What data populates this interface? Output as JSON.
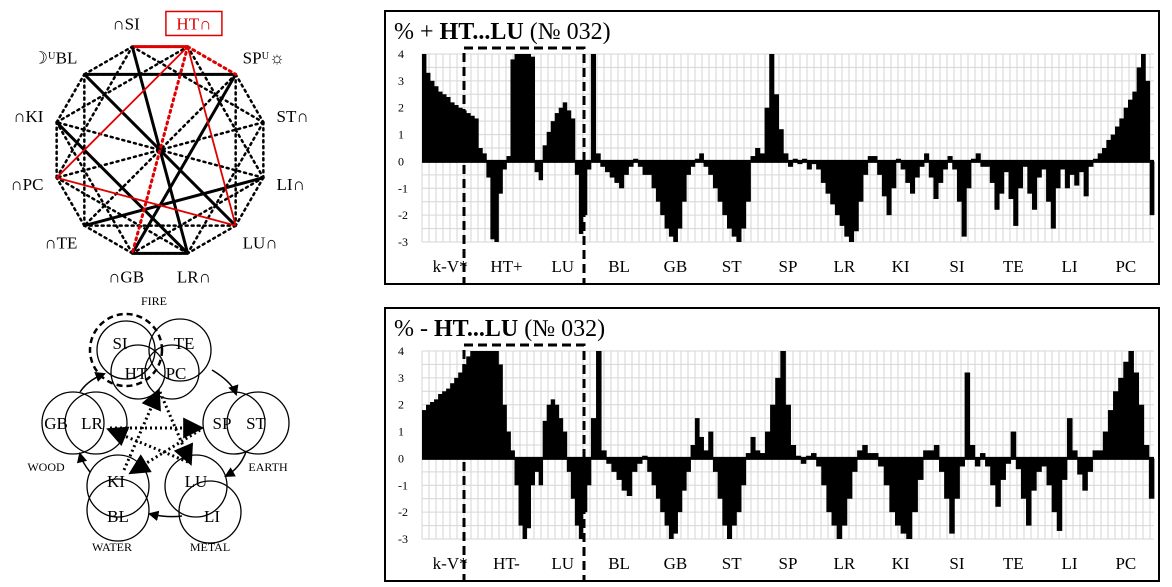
{
  "star_diagram": {
    "nodes": [
      {
        "id": "SI",
        "prefix": "∩",
        "label": "SI",
        "color": "#000"
      },
      {
        "id": "HT",
        "prefix": "",
        "label": "HT∩",
        "color": "#e00000",
        "boxed": true
      },
      {
        "id": "SP",
        "prefix": "",
        "label": "SPᵁ☼",
        "color": "#000"
      },
      {
        "id": "ST",
        "prefix": "",
        "label": "ST∩",
        "color": "#000"
      },
      {
        "id": "LI",
        "prefix": "",
        "label": "LI∩",
        "color": "#000"
      },
      {
        "id": "LU",
        "prefix": "",
        "label": "LU∩",
        "color": "#000"
      },
      {
        "id": "LR",
        "prefix": "",
        "label": "LR∩",
        "color": "#000"
      },
      {
        "id": "GB",
        "prefix": "∩",
        "label": "GB",
        "color": "#000"
      },
      {
        "id": "TE",
        "prefix": "∩",
        "label": "TE",
        "color": "#000"
      },
      {
        "id": "PC",
        "prefix": "∩",
        "label": "PC",
        "color": "#000"
      },
      {
        "id": "KI",
        "prefix": "∩",
        "label": "KI",
        "color": "#000"
      },
      {
        "id": "BL",
        "prefix": "☽ᵁ",
        "label": "BL",
        "color": "#000"
      }
    ],
    "red_color": "#e00000"
  },
  "elements_diagram": {
    "fire": "FIRE",
    "earth": "EARTH",
    "metal": "METAL",
    "water": "WATER",
    "wood": "WOOD",
    "organs": {
      "SI": "SI",
      "TE": "TE",
      "HT": "HT",
      "PC": "PC",
      "SP": "SP",
      "ST": "ST",
      "LU": "LU",
      "LI": "LI",
      "KI": "KI",
      "BL": "BL",
      "GB": "GB",
      "LR": "LR"
    }
  },
  "charts": {
    "top": {
      "title_prefix": "%  + ",
      "title_bold": "HT...LU",
      "title_suffix": " (№ 032)",
      "xlabels": [
        "k-V*",
        "HT+",
        "LU",
        "BL",
        "GB",
        "ST",
        "SP",
        "LR",
        "KI",
        "SI",
        "TE",
        "LI",
        "PC"
      ]
    },
    "bottom": {
      "title_prefix": "%  - ",
      "title_bold": "HT...LU",
      "title_suffix": " (№ 032)",
      "xlabels": [
        "k-V*",
        "HT-",
        "LU",
        "BL",
        "GB",
        "ST",
        "SP",
        "LR",
        "KI",
        "SI",
        "TE",
        "LI",
        "PC"
      ]
    }
  },
  "chart_data": [
    {
      "type": "bar",
      "title": "% + HT...LU (№ 032)",
      "ylim": [
        -3,
        4
      ],
      "yticks": [
        4,
        3,
        2,
        1,
        0,
        -1,
        -2,
        -3
      ],
      "grid": true,
      "categories": [
        "k-V*",
        "HT+",
        "LU",
        "BL",
        "GB",
        "ST",
        "SP",
        "LR",
        "KI",
        "SI",
        "TE",
        "LI",
        "PC"
      ],
      "segments": [
        [
          4,
          3.3,
          3,
          2.8,
          2.6,
          2.5,
          2.4,
          2.2,
          2.1,
          2,
          1.9,
          1.8,
          1.7,
          1.6
        ],
        [
          0.5,
          0.3,
          -0.6,
          -2.9,
          -3,
          -1.2,
          -0.3,
          0.2,
          3.8,
          4,
          4,
          4,
          4,
          3.9
        ],
        [
          -0.4,
          -0.7,
          0.6,
          1.1,
          1.5,
          1.8,
          2,
          2.2,
          1.9,
          1.6,
          -0.5,
          -2.7,
          -2,
          -0.3
        ],
        [
          4,
          0.3,
          -0.2,
          -0.4,
          -0.6,
          -0.8,
          -1,
          -0.5,
          -0.2,
          0.1,
          -0.2,
          -0.5
        ],
        [
          -0.5,
          -1,
          -1.5,
          -2,
          -2.5,
          -2.8,
          -3,
          -2.5,
          -1.5,
          -0.5,
          -0.2,
          0.1,
          0.3
        ],
        [
          -0.2,
          -0.5,
          -1,
          -1.5,
          -2,
          -2.5,
          -2.8,
          -3,
          -2.5,
          -1.5,
          0.2,
          0.5
        ],
        [
          0.3,
          2,
          4,
          2.5,
          1.2,
          0.3,
          -0.2,
          0.1,
          -0.1,
          0.1,
          -0.3,
          -0.1
        ],
        [
          -0.3,
          -0.8,
          -1.2,
          -1.6,
          -2,
          -2.4,
          -2.8,
          -3,
          -2.6,
          -1.5,
          -0.5,
          0.2
        ],
        [
          0.2,
          -0.5,
          -1.3,
          -2,
          -1,
          0.1,
          -0.3,
          -0.8,
          -1.2,
          -0.6,
          -0.2,
          0.3
        ],
        [
          -0.6,
          -1.4,
          -0.8,
          -0.3,
          0.2,
          -0.3,
          -1.5,
          -2.8,
          -1,
          0.1,
          0.3,
          -0.2
        ],
        [
          -0.2,
          -0.8,
          -1.8,
          -1.2,
          -0.4,
          -1.4,
          -2.4,
          -1,
          -0.2,
          -1.2,
          -1.8,
          -0.6
        ],
        [
          -0.3,
          -1.5,
          -2.5,
          -1,
          -0.3,
          -1,
          -0.5,
          -0.9,
          -0.4,
          -1.3,
          -0.2,
          0.1
        ],
        [
          0.3,
          0.5,
          0.8,
          1,
          1.3,
          1.6,
          2,
          2.3,
          2.6,
          3.5,
          4,
          3,
          -2
        ]
      ]
    },
    {
      "type": "bar",
      "title": "% - HT...LU (№ 032)",
      "ylim": [
        -3,
        4
      ],
      "yticks": [
        4,
        3,
        2,
        1,
        0,
        -1,
        -2,
        -3
      ],
      "grid": true,
      "categories": [
        "k-V*",
        "HT-",
        "LU",
        "BL",
        "GB",
        "ST",
        "SP",
        "LR",
        "KI",
        "SI",
        "TE",
        "LI",
        "PC"
      ],
      "segments": [
        [
          1.8,
          2,
          2.1,
          2.2,
          2.4,
          2.5,
          2.6,
          2.8,
          3,
          3.2,
          3.5,
          3.8,
          4,
          4
        ],
        [
          4,
          4,
          4,
          4,
          4,
          3.5,
          2,
          1,
          0.3,
          -1,
          -2.5,
          -3,
          -2.6,
          -1
        ],
        [
          -0.5,
          -1,
          1.4,
          2,
          2.2,
          2,
          1.5,
          1,
          -0.5,
          -1.5,
          -2.5,
          -3,
          -2,
          -1
        ],
        [
          1.5,
          4,
          0.3,
          -0.2,
          -0.5,
          -0.8,
          -1.2,
          -1.4,
          -0.5,
          -0.2,
          0.1
        ],
        [
          -0.5,
          -1,
          -1.5,
          -2,
          -2.5,
          -3,
          -2.8,
          -2,
          -1.2,
          -0.5,
          0.5,
          1.5,
          0.8
        ],
        [
          0.3,
          1,
          -0.5,
          -1.5,
          -2.5,
          -3,
          -2.5,
          -2,
          -1,
          0.2,
          0.8,
          0.3
        ],
        [
          0.2,
          1,
          2,
          3,
          4,
          2,
          0.5,
          0.1,
          -0.2,
          0.1,
          0.2
        ],
        [
          -0.3,
          -1,
          -2,
          -2.5,
          -3,
          -2.5,
          -1.5,
          -0.5,
          0.3,
          0.5,
          0.2
        ],
        [
          0.2,
          -0.3,
          -1,
          -2,
          -2.5,
          -2.8,
          -3,
          -2,
          -0.8,
          0.3
        ],
        [
          0.3,
          0.5,
          -0.5,
          -1.5,
          -2.8,
          -1.5,
          -0.3,
          3.2,
          0.5,
          -0.3,
          0.2
        ],
        [
          -0.3,
          -1,
          -1.8,
          -0.8,
          -0.2,
          1,
          -0.4,
          -1.5,
          -2.5,
          -1.2,
          -0.5
        ],
        [
          -0.3,
          -1,
          -2,
          -2.7,
          -0.8,
          1.5,
          0.3,
          -0.6,
          -1.2,
          -0.5,
          0.3
        ],
        [
          0.3,
          1,
          1.8,
          2.5,
          3,
          3.6,
          4,
          3.2,
          2,
          0.5,
          -1.5
        ]
      ]
    }
  ]
}
